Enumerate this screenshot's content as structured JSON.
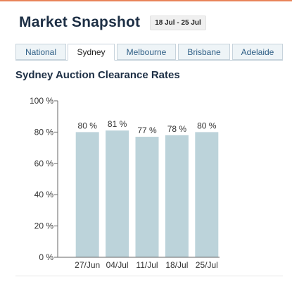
{
  "header": {
    "title": "Market Snapshot",
    "date_range": "18 Jul - 25 Jul"
  },
  "tabs": [
    {
      "label": "National",
      "active": false
    },
    {
      "label": "Sydney",
      "active": true
    },
    {
      "label": "Melbourne",
      "active": false
    },
    {
      "label": "Brisbane",
      "active": false
    },
    {
      "label": "Adelaide",
      "active": false
    }
  ],
  "colors": {
    "bar": "#bcd3da",
    "accent": "#e8845a",
    "title": "#1d2f45",
    "tab_link": "#2f5f86"
  },
  "chart_data": {
    "type": "bar",
    "title": "Sydney Auction Clearance Rates",
    "categories": [
      "27/Jun",
      "04/Jul",
      "11/Jul",
      "18/Jul",
      "25/Jul"
    ],
    "values": [
      80,
      81,
      77,
      78,
      80
    ],
    "value_labels": [
      "80 %",
      "81 %",
      "77 %",
      "78 %",
      "80 %"
    ],
    "yticks": [
      "0 %",
      "20 %",
      "40 %",
      "60 %",
      "80 %",
      "100 %"
    ],
    "ytick_values": [
      0,
      20,
      40,
      60,
      80,
      100
    ],
    "ylim": [
      0,
      100
    ],
    "xlabel": "",
    "ylabel": "",
    "grid": false,
    "legend": "none"
  }
}
